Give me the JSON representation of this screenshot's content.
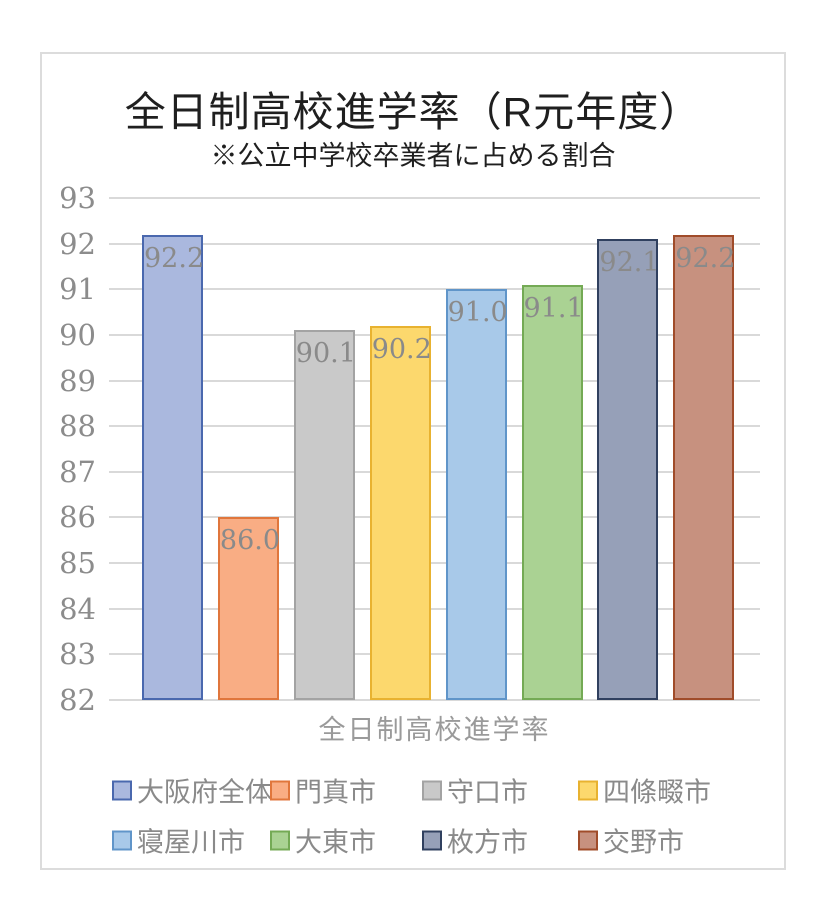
{
  "chart_data": {
    "type": "bar",
    "title": "全日制高校進学率（R元年度）",
    "subtitle": "※公立中学校卒業者に占める割合",
    "xlabel": "全日制高校進学率",
    "ylabel": "",
    "ylim": [
      82,
      93
    ],
    "y_ticks": [
      "93",
      "92",
      "91",
      "90",
      "89",
      "88",
      "87",
      "86",
      "85",
      "84",
      "83",
      "82"
    ],
    "grid": true,
    "legend_position": "bottom",
    "categories": [
      "大阪府全体",
      "門真市",
      "守口市",
      "四條畷市",
      "寝屋川市",
      "大東市",
      "枚方市",
      "交野市"
    ],
    "values": [
      92.2,
      86.0,
      90.1,
      90.2,
      91.0,
      91.1,
      92.1,
      92.2
    ],
    "value_labels": [
      "92.2",
      "86.0",
      "90.1",
      "90.2",
      "91.0",
      "91.1",
      "92.1",
      "92.2"
    ],
    "bar_fill_colors": [
      "#aab8de",
      "#f9ad84",
      "#c9c9c9",
      "#fcd86d",
      "#a8c9e9",
      "#aad293",
      "#96a0b8",
      "#c7917f"
    ],
    "bar_border_colors": [
      "#4a68ae",
      "#e0763c",
      "#a3a3a3",
      "#e8b230",
      "#6095c9",
      "#74aa55",
      "#30405f",
      "#a04c2a"
    ],
    "colors": {
      "grid": "#d9d9d9",
      "frame_border": "#dcdcdc",
      "title_text": "#1f1f1f",
      "tick_text": "#8c8c8c",
      "data_label_text": "#8a8a8a",
      "axis_label_text": "#9a9a9a",
      "legend_text": "#8a8a8a"
    }
  }
}
